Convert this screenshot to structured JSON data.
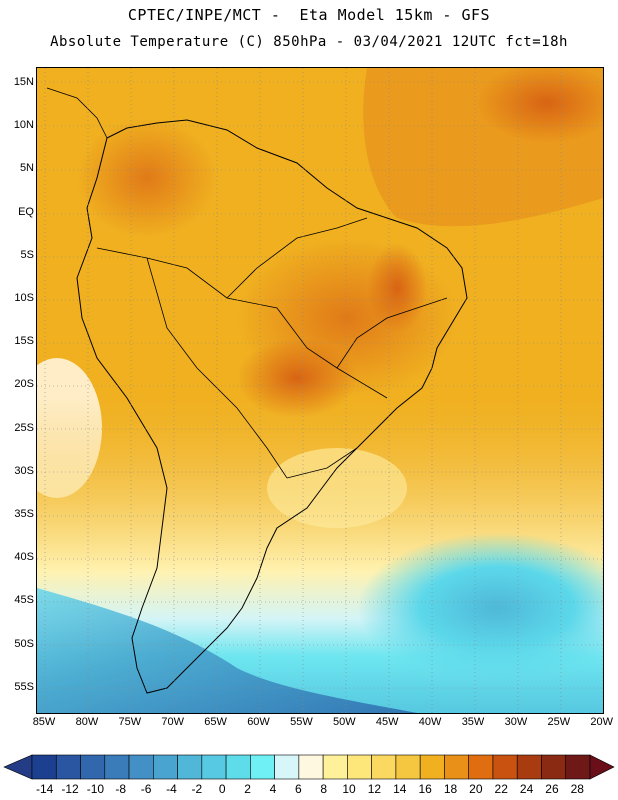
{
  "header": {
    "line1": "CPTEC/INPE/MCT -  Eta Model 15km - GFS",
    "line2": "Absolute Temperature (C) 850hPa - 03/04/2021 12UTC fct=18h"
  },
  "map": {
    "lat_labels": [
      "15N",
      "10N",
      "5N",
      "EQ",
      "5S",
      "10S",
      "15S",
      "20S",
      "25S",
      "30S",
      "35S",
      "40S",
      "45S",
      "50S",
      "55S"
    ],
    "lon_labels": [
      "85W",
      "80W",
      "75W",
      "70W",
      "65W",
      "60W",
      "55W",
      "50W",
      "45W",
      "40W",
      "35W",
      "30W",
      "25W",
      "20W"
    ]
  },
  "colorbar": {
    "labels": [
      "-14",
      "-12",
      "-10",
      "-8",
      "-6",
      "-4",
      "-2",
      "0",
      "2",
      "4",
      "6",
      "8",
      "10",
      "12",
      "14",
      "16",
      "18",
      "20",
      "22",
      "24",
      "26",
      "28"
    ],
    "colors": [
      "#1d3f8f",
      "#2a55a0",
      "#3168ad",
      "#3a7cba",
      "#4290c6",
      "#49a4cf",
      "#50b7d8",
      "#58c9e2",
      "#5fdcea",
      "#6ef0f4",
      "#d6f6fa",
      "#fff8e0",
      "#fff19a",
      "#fde67a",
      "#fbd860",
      "#f5c640",
      "#f0b020",
      "#e99018",
      "#e06e10",
      "#c95210",
      "#a83c10",
      "#8a2a12",
      "#6e1818"
    ],
    "low_arrow_color": "#243c86",
    "high_arrow_color": "#6a0f1a"
  }
}
